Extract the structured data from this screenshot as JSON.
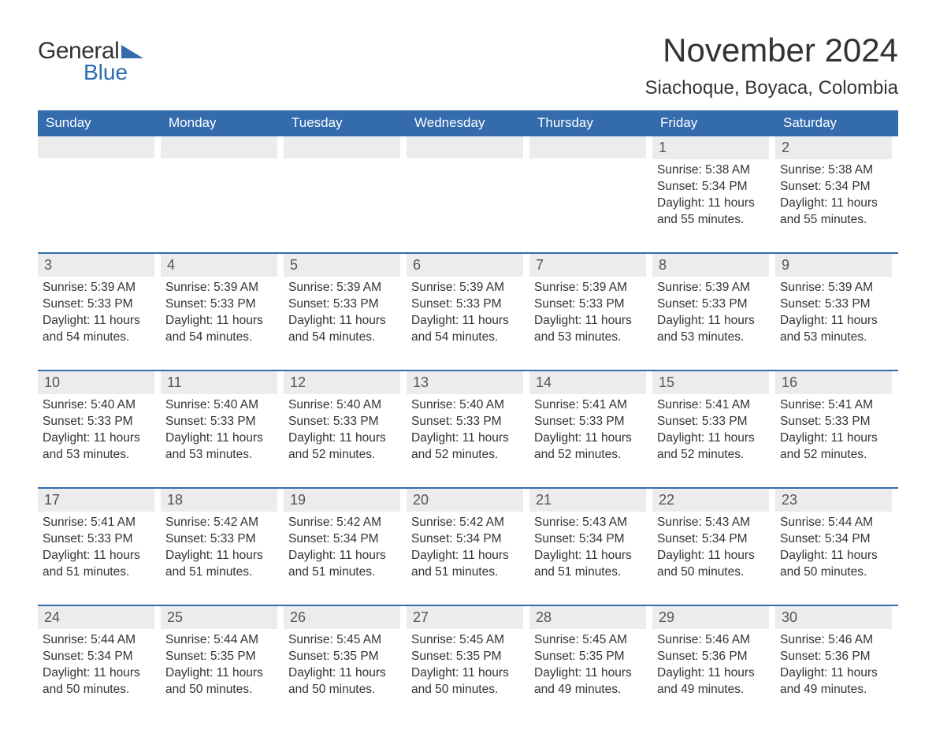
{
  "logo": {
    "text1": "General",
    "text2": "Blue",
    "tri_color": "#336bad"
  },
  "title": "November 2024",
  "location": "Siachoque, Boyaca, Colombia",
  "header_bg": "#336bad",
  "daynum_bg": "#ececec",
  "week_border": "#336bad",
  "day_names": [
    "Sunday",
    "Monday",
    "Tuesday",
    "Wednesday",
    "Thursday",
    "Friday",
    "Saturday"
  ],
  "sunrise_label": "Sunrise: ",
  "sunset_label": "Sunset: ",
  "daylight_label_prefix": "Daylight: ",
  "weeks": [
    [
      null,
      null,
      null,
      null,
      null,
      {
        "n": "1",
        "sr": "5:38 AM",
        "ss": "5:34 PM",
        "dl": "11 hours and 55 minutes."
      },
      {
        "n": "2",
        "sr": "5:38 AM",
        "ss": "5:34 PM",
        "dl": "11 hours and 55 minutes."
      }
    ],
    [
      {
        "n": "3",
        "sr": "5:39 AM",
        "ss": "5:33 PM",
        "dl": "11 hours and 54 minutes."
      },
      {
        "n": "4",
        "sr": "5:39 AM",
        "ss": "5:33 PM",
        "dl": "11 hours and 54 minutes."
      },
      {
        "n": "5",
        "sr": "5:39 AM",
        "ss": "5:33 PM",
        "dl": "11 hours and 54 minutes."
      },
      {
        "n": "6",
        "sr": "5:39 AM",
        "ss": "5:33 PM",
        "dl": "11 hours and 54 minutes."
      },
      {
        "n": "7",
        "sr": "5:39 AM",
        "ss": "5:33 PM",
        "dl": "11 hours and 53 minutes."
      },
      {
        "n": "8",
        "sr": "5:39 AM",
        "ss": "5:33 PM",
        "dl": "11 hours and 53 minutes."
      },
      {
        "n": "9",
        "sr": "5:39 AM",
        "ss": "5:33 PM",
        "dl": "11 hours and 53 minutes."
      }
    ],
    [
      {
        "n": "10",
        "sr": "5:40 AM",
        "ss": "5:33 PM",
        "dl": "11 hours and 53 minutes."
      },
      {
        "n": "11",
        "sr": "5:40 AM",
        "ss": "5:33 PM",
        "dl": "11 hours and 53 minutes."
      },
      {
        "n": "12",
        "sr": "5:40 AM",
        "ss": "5:33 PM",
        "dl": "11 hours and 52 minutes."
      },
      {
        "n": "13",
        "sr": "5:40 AM",
        "ss": "5:33 PM",
        "dl": "11 hours and 52 minutes."
      },
      {
        "n": "14",
        "sr": "5:41 AM",
        "ss": "5:33 PM",
        "dl": "11 hours and 52 minutes."
      },
      {
        "n": "15",
        "sr": "5:41 AM",
        "ss": "5:33 PM",
        "dl": "11 hours and 52 minutes."
      },
      {
        "n": "16",
        "sr": "5:41 AM",
        "ss": "5:33 PM",
        "dl": "11 hours and 52 minutes."
      }
    ],
    [
      {
        "n": "17",
        "sr": "5:41 AM",
        "ss": "5:33 PM",
        "dl": "11 hours and 51 minutes."
      },
      {
        "n": "18",
        "sr": "5:42 AM",
        "ss": "5:33 PM",
        "dl": "11 hours and 51 minutes."
      },
      {
        "n": "19",
        "sr": "5:42 AM",
        "ss": "5:34 PM",
        "dl": "11 hours and 51 minutes."
      },
      {
        "n": "20",
        "sr": "5:42 AM",
        "ss": "5:34 PM",
        "dl": "11 hours and 51 minutes."
      },
      {
        "n": "21",
        "sr": "5:43 AM",
        "ss": "5:34 PM",
        "dl": "11 hours and 51 minutes."
      },
      {
        "n": "22",
        "sr": "5:43 AM",
        "ss": "5:34 PM",
        "dl": "11 hours and 50 minutes."
      },
      {
        "n": "23",
        "sr": "5:44 AM",
        "ss": "5:34 PM",
        "dl": "11 hours and 50 minutes."
      }
    ],
    [
      {
        "n": "24",
        "sr": "5:44 AM",
        "ss": "5:34 PM",
        "dl": "11 hours and 50 minutes."
      },
      {
        "n": "25",
        "sr": "5:44 AM",
        "ss": "5:35 PM",
        "dl": "11 hours and 50 minutes."
      },
      {
        "n": "26",
        "sr": "5:45 AM",
        "ss": "5:35 PM",
        "dl": "11 hours and 50 minutes."
      },
      {
        "n": "27",
        "sr": "5:45 AM",
        "ss": "5:35 PM",
        "dl": "11 hours and 50 minutes."
      },
      {
        "n": "28",
        "sr": "5:45 AM",
        "ss": "5:35 PM",
        "dl": "11 hours and 49 minutes."
      },
      {
        "n": "29",
        "sr": "5:46 AM",
        "ss": "5:36 PM",
        "dl": "11 hours and 49 minutes."
      },
      {
        "n": "30",
        "sr": "5:46 AM",
        "ss": "5:36 PM",
        "dl": "11 hours and 49 minutes."
      }
    ]
  ]
}
